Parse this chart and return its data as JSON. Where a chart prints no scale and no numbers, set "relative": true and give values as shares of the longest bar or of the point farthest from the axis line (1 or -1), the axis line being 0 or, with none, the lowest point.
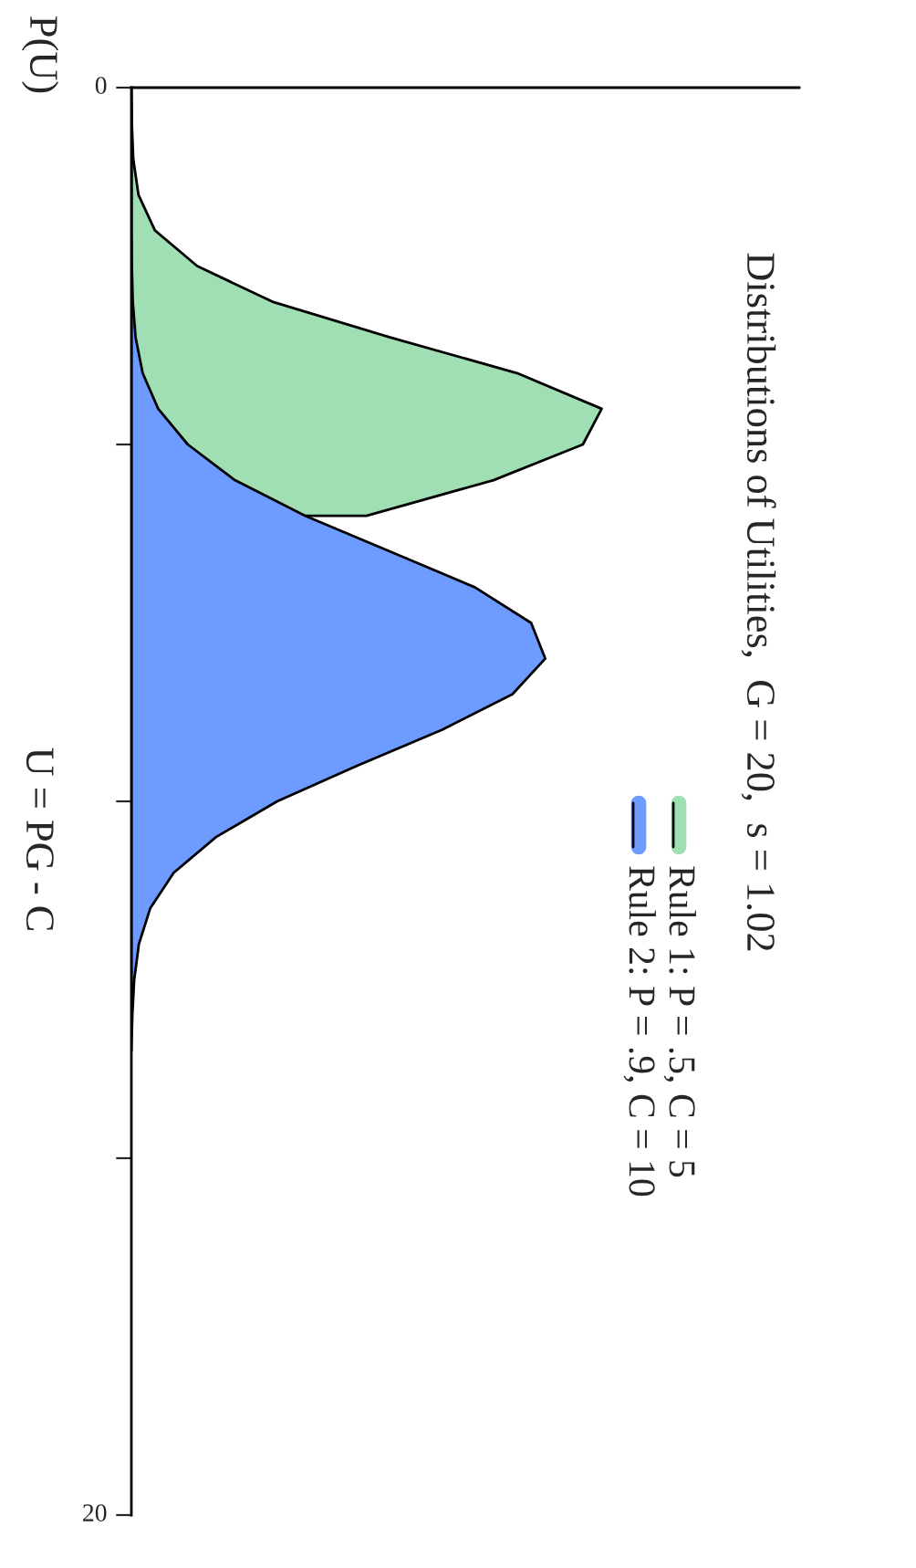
{
  "chart_data": {
    "type": "area",
    "title": "Distributions of Utilities,  G = 20,  s = 1.02",
    "ylabel": "U = PG - C",
    "annotations": [
      "P(U)"
    ],
    "relative": true,
    "orientation": "horizontal",
    "ylim": [
      20,
      0
    ],
    "yticks": [
      0,
      {
        "value": 5,
        "label": null
      },
      {
        "value": 10,
        "label": null
      },
      {
        "value": 15,
        "label": null
      },
      20
    ],
    "grid": false,
    "legend": "bottom right",
    "x": [
      0,
      0.5,
      1,
      1.5,
      2,
      2.5,
      3,
      3.5,
      4,
      4.5,
      5,
      5.5,
      6,
      6.5,
      7,
      7.5,
      8,
      8.5,
      9,
      9.5,
      10,
      10.5,
      11,
      11.5,
      12,
      12.5,
      13,
      13.5
    ],
    "series": [
      {
        "name": "Rule 1: P = .5, C = 5",
        "color": "#a0dfb4",
        "values": [
          0,
          0.001,
          0.004,
          0.015,
          0.05,
          0.14,
          0.3,
          0.55,
          0.82,
          1,
          0.96,
          0.77,
          0.5,
          null,
          null,
          null,
          null,
          null,
          null,
          null,
          null,
          null,
          null,
          null,
          null,
          null,
          null,
          null
        ]
      },
      {
        "name": "Rule 2: P = .9, C = 10",
        "color": "#6e9bff",
        "values": [
          0,
          0,
          0,
          0,
          0,
          0.001,
          0.003,
          0.009,
          0.024,
          0.057,
          0.12,
          0.22,
          0.37,
          0.55,
          0.73,
          0.85,
          0.88,
          0.81,
          0.66,
          0.48,
          0.31,
          0.18,
          0.09,
          0.04,
          0.016,
          0.006,
          0.002,
          0
        ]
      }
    ]
  }
}
